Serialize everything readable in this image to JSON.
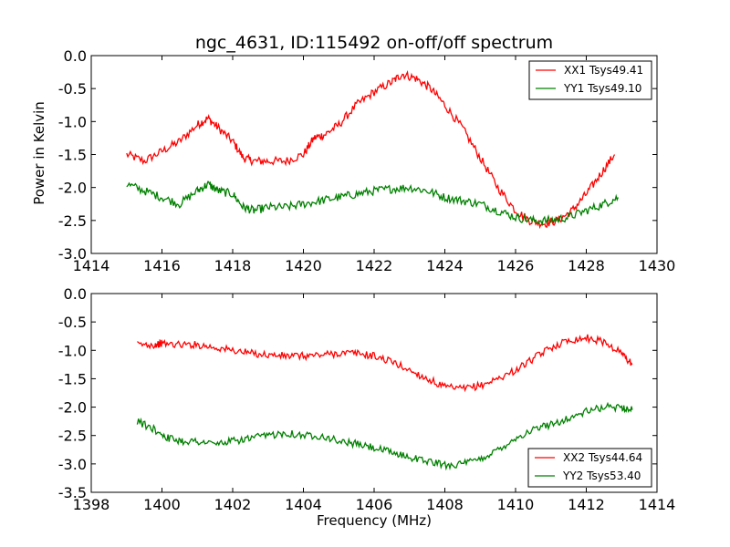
{
  "chart_data": [
    {
      "type": "line",
      "title": "ngc_4631, ID:115492 on-off/off spectrum",
      "xlabel": "",
      "ylabel": "Power in Kelvin",
      "xlim": [
        1414,
        1430
      ],
      "ylim": [
        -3.0,
        0.0
      ],
      "xticks": [
        "1414",
        "1416",
        "1418",
        "1420",
        "1422",
        "1424",
        "1426",
        "1428",
        "1430"
      ],
      "yticks": [
        "-3.0",
        "-2.5",
        "-2.0",
        "-1.5",
        "-1.0",
        "-0.5",
        "0.0"
      ],
      "grid": false,
      "legend_position": "top-right",
      "series": [
        {
          "name": "XX1 Tsys49.41",
          "color": "#ff0000",
          "x": [
            1415.0,
            1415.5,
            1416.0,
            1416.5,
            1417.0,
            1417.3,
            1417.6,
            1418.0,
            1418.3,
            1418.6,
            1419.0,
            1419.5,
            1420.0,
            1420.3,
            1420.6,
            1421.0,
            1421.5,
            1422.0,
            1422.5,
            1422.8,
            1423.2,
            1423.6,
            1424.0,
            1424.5,
            1425.0,
            1425.5,
            1426.0,
            1426.4,
            1426.8,
            1427.2,
            1427.6,
            1428.0,
            1428.4,
            1428.8
          ],
          "values": [
            -1.5,
            -1.6,
            -1.45,
            -1.3,
            -1.05,
            -0.95,
            -1.1,
            -1.3,
            -1.55,
            -1.6,
            -1.6,
            -1.6,
            -1.5,
            -1.25,
            -1.2,
            -1.05,
            -0.75,
            -0.55,
            -0.4,
            -0.28,
            -0.35,
            -0.5,
            -0.75,
            -1.1,
            -1.55,
            -2.0,
            -2.35,
            -2.5,
            -2.55,
            -2.5,
            -2.35,
            -2.1,
            -1.8,
            -1.5
          ]
        },
        {
          "name": "YY1 Tsys49.10",
          "color": "#008000",
          "x": [
            1415.0,
            1415.5,
            1416.0,
            1416.5,
            1417.0,
            1417.3,
            1417.6,
            1418.0,
            1418.3,
            1418.6,
            1419.0,
            1419.5,
            1420.0,
            1420.5,
            1421.0,
            1421.5,
            1422.0,
            1422.5,
            1423.0,
            1423.5,
            1424.0,
            1424.5,
            1425.0,
            1425.5,
            1426.0,
            1426.5,
            1427.0,
            1427.5,
            1428.0,
            1428.5,
            1428.9
          ],
          "values": [
            -1.95,
            -2.05,
            -2.15,
            -2.25,
            -2.05,
            -1.95,
            -2.05,
            -2.1,
            -2.3,
            -2.35,
            -2.3,
            -2.3,
            -2.25,
            -2.2,
            -2.15,
            -2.1,
            -2.05,
            -2.02,
            -2.0,
            -2.05,
            -2.15,
            -2.2,
            -2.25,
            -2.35,
            -2.45,
            -2.5,
            -2.5,
            -2.45,
            -2.35,
            -2.25,
            -2.15
          ]
        }
      ]
    },
    {
      "type": "line",
      "title": "",
      "xlabel": "Frequency (MHz)",
      "ylabel": "",
      "xlim": [
        1398,
        1414
      ],
      "ylim": [
        -3.5,
        0.0
      ],
      "xticks": [
        "1398",
        "1400",
        "1402",
        "1404",
        "1406",
        "1408",
        "1410",
        "1412",
        "1414"
      ],
      "yticks": [
        "-3.5",
        "-3.0",
        "-2.5",
        "-2.0",
        "-1.5",
        "-1.0",
        "-0.5",
        "0.0"
      ],
      "grid": false,
      "legend_position": "bottom-right",
      "series": [
        {
          "name": "XX2 Tsys44.64",
          "color": "#ff0000",
          "x": [
            1399.3,
            1399.8,
            1400.0,
            1400.5,
            1401.0,
            1401.5,
            1402.0,
            1402.5,
            1403.0,
            1403.5,
            1404.0,
            1404.5,
            1405.0,
            1405.5,
            1406.0,
            1406.5,
            1407.0,
            1407.5,
            1408.0,
            1408.5,
            1409.0,
            1409.5,
            1410.0,
            1410.5,
            1411.0,
            1411.5,
            1412.0,
            1412.5,
            1413.0,
            1413.3
          ],
          "values": [
            -0.9,
            -0.9,
            -0.88,
            -0.9,
            -0.9,
            -0.95,
            -1.0,
            -1.05,
            -1.08,
            -1.1,
            -1.1,
            -1.08,
            -1.05,
            -1.05,
            -1.1,
            -1.2,
            -1.35,
            -1.5,
            -1.65,
            -1.68,
            -1.62,
            -1.5,
            -1.35,
            -1.15,
            -0.95,
            -0.82,
            -0.78,
            -0.85,
            -1.05,
            -1.25
          ]
        },
        {
          "name": "YY2 Tsys53.40",
          "color": "#008000",
          "x": [
            1399.3,
            1399.8,
            1400.2,
            1400.6,
            1401.0,
            1401.5,
            1402.0,
            1402.5,
            1403.0,
            1403.5,
            1404.0,
            1404.5,
            1405.0,
            1405.5,
            1406.0,
            1406.5,
            1407.0,
            1407.5,
            1408.0,
            1408.5,
            1409.0,
            1409.5,
            1410.0,
            1410.5,
            1411.0,
            1411.5,
            1412.0,
            1412.5,
            1413.0,
            1413.3
          ],
          "values": [
            -2.25,
            -2.4,
            -2.55,
            -2.6,
            -2.6,
            -2.65,
            -2.6,
            -2.55,
            -2.5,
            -2.45,
            -2.5,
            -2.5,
            -2.6,
            -2.65,
            -2.72,
            -2.8,
            -2.88,
            -2.95,
            -3.02,
            -3.0,
            -2.92,
            -2.75,
            -2.55,
            -2.4,
            -2.3,
            -2.2,
            -2.08,
            -2.0,
            -2.0,
            -2.05
          ]
        }
      ]
    }
  ]
}
